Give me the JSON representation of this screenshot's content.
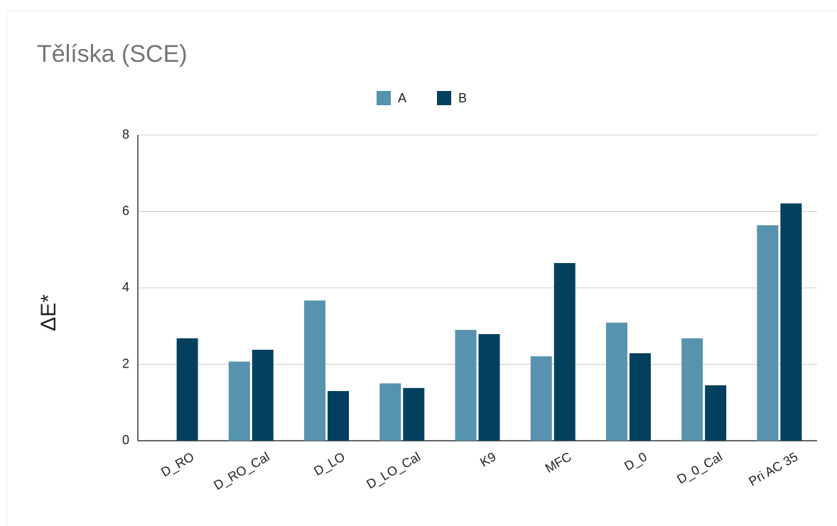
{
  "chart_data": {
    "type": "bar",
    "title": "Tělíska (SCE)",
    "y_label": "ΔE*",
    "categories": [
      "D_RO",
      "D_RO_Cal",
      "D_LO",
      "D_LO_Cal",
      "K9",
      "MFC",
      "D_0",
      "D_0_Cal",
      "Pri AC 35"
    ],
    "series": [
      {
        "name": "A",
        "color": "#5792ae",
        "values": [
          null,
          2.07,
          3.67,
          1.5,
          2.9,
          2.21,
          3.09,
          2.68,
          5.64
        ]
      },
      {
        "name": "B",
        "color": "#04405e",
        "values": [
          2.68,
          2.38,
          1.3,
          1.38,
          2.79,
          4.65,
          2.29,
          1.45,
          6.21
        ]
      }
    ],
    "ylim": [
      0,
      8
    ],
    "yticks": [
      0,
      2,
      4,
      6,
      8
    ],
    "grid": true,
    "legend": "top"
  }
}
